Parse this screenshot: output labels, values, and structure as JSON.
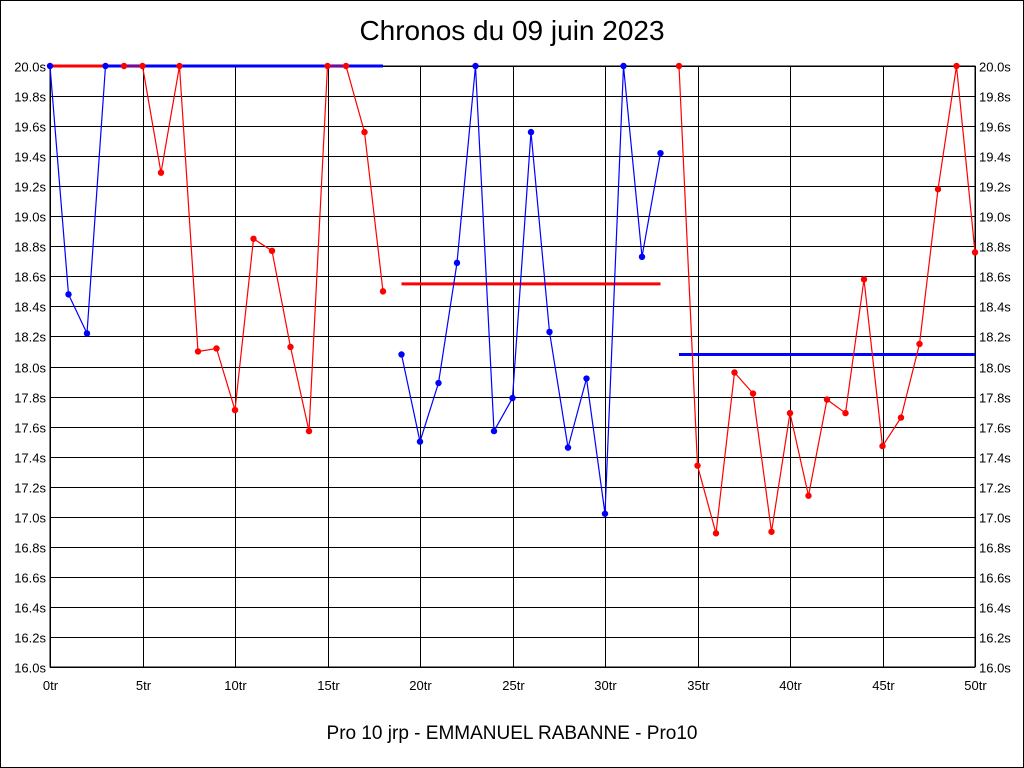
{
  "chart_data": {
    "type": "line",
    "title": "Chronos du 09 juin 2023",
    "caption": "Pro 10 jrp - EMMANUEL RABANNE - Pro10",
    "xlim": [
      0,
      50
    ],
    "ylim": [
      16.0,
      20.0
    ],
    "grid": true,
    "x_ticks": [
      0,
      5,
      10,
      15,
      20,
      25,
      30,
      35,
      40,
      45,
      50
    ],
    "x_tick_labels": [
      "0tr",
      "5tr",
      "10tr",
      "15tr",
      "20tr",
      "25tr",
      "30tr",
      "35tr",
      "40tr",
      "45tr",
      "50tr"
    ],
    "y_ticks": [
      16.0,
      16.2,
      16.4,
      16.6,
      16.8,
      17.0,
      17.2,
      17.4,
      17.6,
      17.8,
      18.0,
      18.2,
      18.4,
      18.6,
      18.8,
      19.0,
      19.2,
      19.4,
      19.6,
      19.8,
      20.0
    ],
    "y_tick_labels": [
      "16.0s",
      "16.2s",
      "16.4s",
      "16.6s",
      "16.8s",
      "17.0s",
      "17.2s",
      "17.4s",
      "17.6s",
      "17.8s",
      "18.0s",
      "18.2s",
      "18.4s",
      "18.6s",
      "18.8s",
      "19.0s",
      "19.2s",
      "19.4s",
      "19.6s",
      "19.8s",
      "20.0s"
    ],
    "series": [
      {
        "color": "#0000ff",
        "points": [
          [
            0,
            20.0
          ],
          [
            1,
            18.48
          ],
          [
            2,
            18.22
          ],
          [
            3,
            20.0
          ]
        ]
      },
      {
        "color": "#ff0000",
        "points": [
          [
            4,
            20.0
          ],
          [
            5,
            20.0
          ],
          [
            6,
            19.29
          ],
          [
            7,
            20.0
          ],
          [
            8,
            18.1
          ],
          [
            9,
            18.12
          ],
          [
            10,
            17.71
          ],
          [
            11,
            18.85
          ],
          [
            12,
            18.77
          ],
          [
            13,
            18.13
          ],
          [
            14,
            17.57
          ],
          [
            15,
            20.0
          ],
          [
            16,
            20.0
          ],
          [
            17,
            19.56
          ],
          [
            18,
            18.5
          ]
        ]
      },
      {
        "color": "#0000ff",
        "points": [
          [
            19,
            18.08
          ],
          [
            20,
            17.5
          ],
          [
            21,
            17.89
          ],
          [
            22,
            18.69
          ],
          [
            23,
            20.0
          ],
          [
            24,
            17.57
          ],
          [
            25,
            17.79
          ],
          [
            26,
            19.56
          ],
          [
            27,
            18.23
          ],
          [
            28,
            17.46
          ],
          [
            29,
            17.92
          ],
          [
            30,
            17.02
          ],
          [
            31,
            20.0
          ],
          [
            32,
            18.73
          ],
          [
            33,
            19.42
          ]
        ]
      },
      {
        "color": "#ff0000",
        "points": [
          [
            34,
            20.0
          ],
          [
            35,
            17.34
          ],
          [
            36,
            16.89
          ],
          [
            37,
            17.96
          ],
          [
            38,
            17.82
          ],
          [
            39,
            16.9
          ],
          [
            40,
            17.69
          ],
          [
            41,
            17.14
          ],
          [
            42,
            17.78
          ],
          [
            43,
            17.69
          ],
          [
            44,
            18.58
          ],
          [
            45,
            17.47
          ],
          [
            46,
            17.66
          ],
          [
            47,
            18.15
          ],
          [
            48,
            19.18
          ],
          [
            49,
            20.0
          ],
          [
            50,
            18.76
          ]
        ]
      }
    ],
    "reference_lines": [
      {
        "color": "#ff0000",
        "x": [
          0,
          3
        ],
        "y": 20.0
      },
      {
        "color": "#0000ff",
        "x": [
          3,
          18
        ],
        "y": 20.0
      },
      {
        "color": "#ff0000",
        "x": [
          19,
          33
        ],
        "y": 18.55
      },
      {
        "color": "#0000ff",
        "x": [
          34,
          50
        ],
        "y": 18.08
      }
    ]
  }
}
